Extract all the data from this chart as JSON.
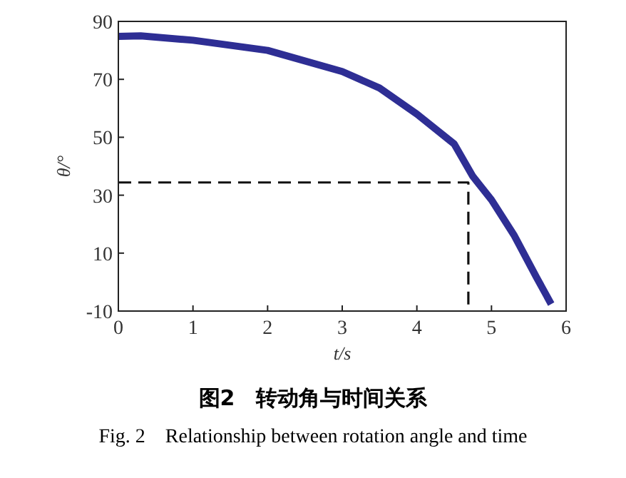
{
  "chart_data": {
    "type": "line",
    "title": "图2　转动角与时间关系",
    "subtitle": "Fig. 2　Relationship between rotation angle and time",
    "xlabel": "t/s",
    "ylabel": "θ/°",
    "xlim": [
      0,
      6
    ],
    "ylim": [
      -10,
      90
    ],
    "xticks": [
      0,
      1,
      2,
      3,
      4,
      5,
      6
    ],
    "yticks": [
      -10,
      10,
      30,
      50,
      70,
      90
    ],
    "grid": false,
    "series": [
      {
        "color": "#2e2e94",
        "x": [
          0,
          0.3,
          1,
          2,
          3,
          3.5,
          4,
          4.5,
          4.75,
          5,
          5.3,
          5.6,
          5.8
        ],
        "values": [
          84.8,
          85,
          83.5,
          80,
          72.7,
          67,
          58,
          47.7,
          36.5,
          28.4,
          16.3,
          1.8,
          -7.6
        ]
      },
      {
        "color": "#111111",
        "line_style": "dashed",
        "x": [
          0,
          4.69,
          4.69
        ],
        "values": [
          34.4,
          34.4,
          -10
        ]
      }
    ]
  }
}
